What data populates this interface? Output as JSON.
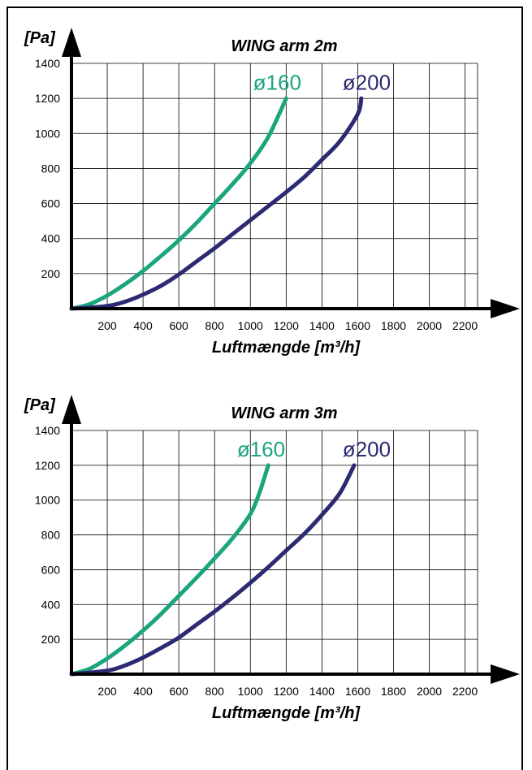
{
  "chart_data": [
    {
      "type": "line",
      "title": "WING arm 2m",
      "ylabel": "[Pa]",
      "xlabel": "Luftmængde [m³/h]",
      "xlim": [
        0,
        2200
      ],
      "ylim": [
        0,
        1400
      ],
      "x_ticks": [
        "200",
        "400",
        "600",
        "800",
        "1000",
        "1200",
        "1400",
        "1600",
        "1800",
        "2000",
        "2200"
      ],
      "y_ticks": [
        "200",
        "400",
        "600",
        "800",
        "1000",
        "1200",
        "1400"
      ],
      "grid": true,
      "series": [
        {
          "name": "ø160",
          "color": "#1aa57e",
          "x": [
            0,
            100,
            200,
            300,
            400,
            500,
            600,
            700,
            800,
            900,
            1000,
            1100,
            1200
          ],
          "y": [
            0,
            25,
            75,
            140,
            215,
            300,
            390,
            490,
            600,
            710,
            830,
            980,
            1200
          ]
        },
        {
          "name": "ø200",
          "color": "#2b2a72",
          "x": [
            0,
            200,
            300,
            400,
            500,
            600,
            700,
            800,
            900,
            1000,
            1100,
            1200,
            1300,
            1400,
            1500,
            1600,
            1620
          ],
          "y": [
            0,
            15,
            40,
            80,
            130,
            195,
            270,
            345,
            425,
            505,
            585,
            665,
            750,
            850,
            955,
            1110,
            1200
          ]
        }
      ]
    },
    {
      "type": "line",
      "title": "WING arm 3m",
      "ylabel": "[Pa]",
      "xlabel": "Luftmængde [m³/h]",
      "xlim": [
        0,
        2200
      ],
      "ylim": [
        0,
        1400
      ],
      "x_ticks": [
        "200",
        "400",
        "600",
        "800",
        "1000",
        "1200",
        "1400",
        "1600",
        "1800",
        "2000",
        "2200"
      ],
      "y_ticks": [
        "200",
        "400",
        "600",
        "800",
        "1000",
        "1200",
        "1400"
      ],
      "grid": true,
      "series": [
        {
          "name": "ø160",
          "color": "#1aa57e",
          "x": [
            0,
            100,
            200,
            300,
            400,
            500,
            600,
            700,
            800,
            900,
            1000,
            1050,
            1100
          ],
          "y": [
            0,
            30,
            90,
            165,
            250,
            345,
            450,
            555,
            665,
            780,
            920,
            1040,
            1200
          ]
        },
        {
          "name": "ø200",
          "color": "#2b2a72",
          "x": [
            0,
            200,
            300,
            400,
            500,
            600,
            700,
            800,
            900,
            1000,
            1100,
            1200,
            1300,
            1400,
            1500,
            1580
          ],
          "y": [
            0,
            20,
            50,
            95,
            150,
            210,
            285,
            360,
            440,
            525,
            615,
            710,
            805,
            915,
            1040,
            1200
          ]
        }
      ]
    }
  ]
}
